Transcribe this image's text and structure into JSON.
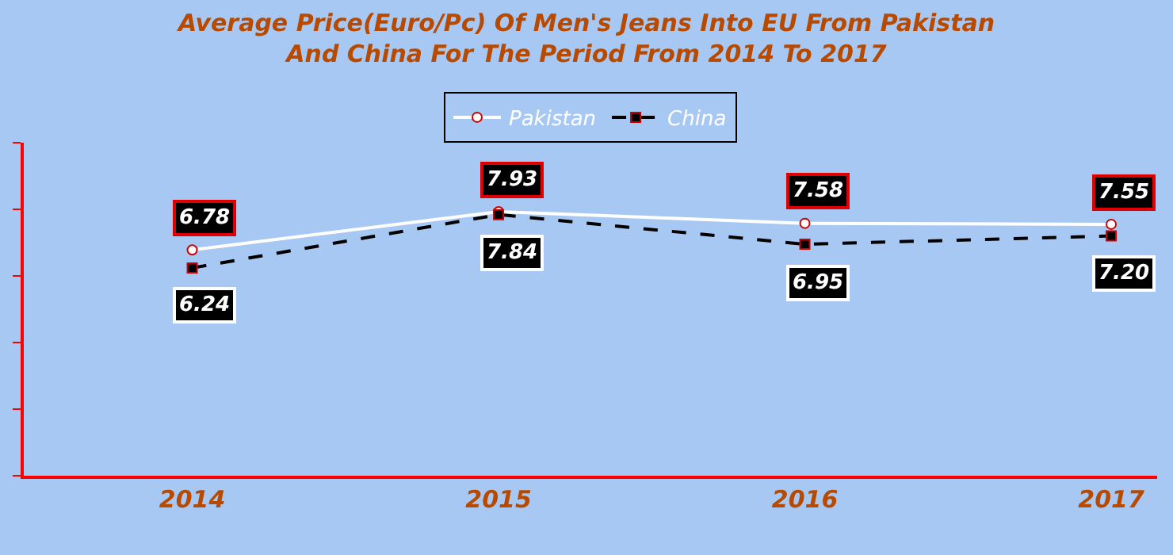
{
  "chart_data": {
    "type": "line",
    "title": "Average Price(Euro/Pc) Of Men's Jeans Into EU From Pakistan\nAnd China For The Period From 2014 To 2017",
    "categories": [
      "2014",
      "2015",
      "2016",
      "2017"
    ],
    "series": [
      {
        "name": "Pakistan",
        "color": "#ffffff",
        "values": [
          6.78,
          7.93,
          7.58,
          7.55
        ],
        "value_labels": [
          "6.78",
          "7.93",
          "7.58",
          "7.55"
        ],
        "marker": "circle",
        "line_style": "solid"
      },
      {
        "name": "China",
        "color": "#000000",
        "values": [
          6.24,
          7.84,
          6.95,
          7.2
        ],
        "value_labels": [
          "6.24",
          "7.84",
          "6.95",
          "7.20"
        ],
        "marker": "square",
        "line_style": "dashed"
      }
    ],
    "ylim": [
      0,
      10
    ],
    "yticks": [
      {
        "value": 0,
        "label": null
      },
      {
        "value": 2,
        "label": null
      },
      {
        "value": 4,
        "label": null
      },
      {
        "value": 6,
        "label": null
      },
      {
        "value": 8,
        "label": null
      },
      {
        "value": 10,
        "label": null
      }
    ],
    "legend": "top",
    "grid": false,
    "tick_labels": "x"
  }
}
